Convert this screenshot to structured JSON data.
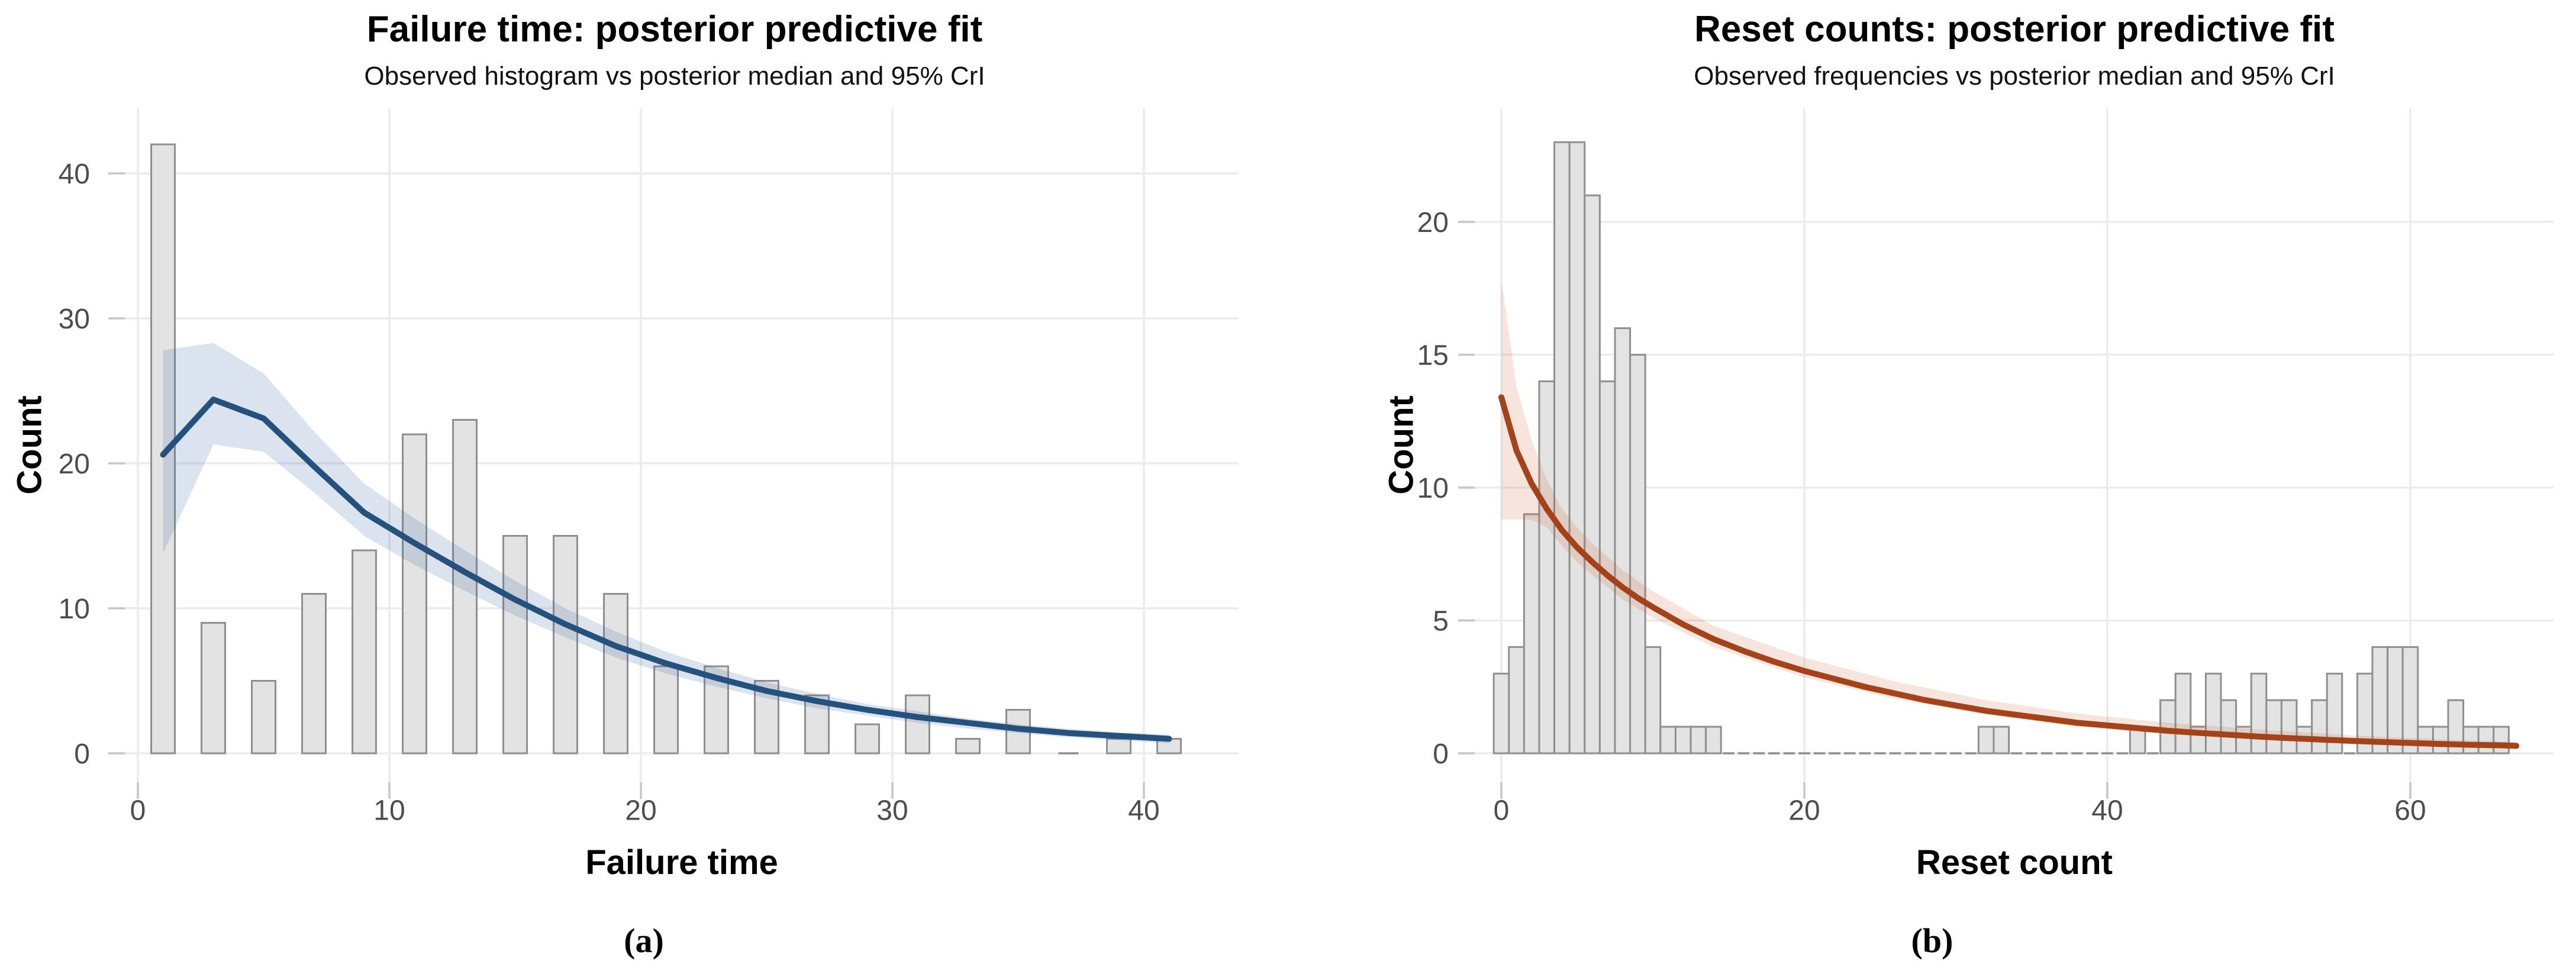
{
  "chart_data": [
    {
      "type": "bar",
      "subtype": "histogram-with-posterior-line-and-band",
      "title": "Failure time: posterior predictive fit",
      "subtitle": "Observed histogram vs posterior median and 95% CrI",
      "xlabel": "Failure time",
      "ylabel": "Count",
      "caption": "(a)",
      "x_ticks": [
        0,
        10,
        20,
        30,
        40
      ],
      "y_ticks": [
        0,
        10,
        20,
        30,
        40
      ],
      "xlim": [
        -1,
        43.6
      ],
      "ylim": [
        0,
        44
      ],
      "grid": true,
      "legend_position": "none",
      "bars": {
        "barwidth": 0.94,
        "x": [
          1,
          3,
          5,
          7,
          9,
          11,
          13,
          15,
          17,
          19,
          21,
          23,
          25,
          27,
          29,
          31,
          33,
          35,
          37,
          39,
          41
        ],
        "counts": [
          42,
          9,
          5,
          11,
          14,
          22,
          23,
          15,
          15,
          11,
          6,
          6,
          5,
          4,
          2,
          4,
          1,
          3,
          0,
          1,
          1
        ]
      },
      "median": {
        "x": [
          1,
          3,
          5,
          7,
          9,
          11,
          13,
          15,
          17,
          19,
          21,
          23,
          25,
          27,
          29,
          31,
          33,
          35,
          37,
          39,
          41
        ],
        "y": [
          20.6,
          24.4,
          23.1,
          19.8,
          16.6,
          14.5,
          12.5,
          10.6,
          8.9,
          7.4,
          6.2,
          5.2,
          4.3,
          3.6,
          3.0,
          2.5,
          2.1,
          1.7,
          1.4,
          1.2,
          1.0
        ]
      },
      "band": {
        "x": [
          1,
          3,
          5,
          7,
          9,
          11,
          13,
          15,
          17,
          19,
          21,
          23,
          25,
          27,
          29,
          31,
          33,
          35,
          37,
          39,
          41
        ],
        "lower": [
          13.8,
          21.3,
          20.8,
          18.0,
          15.0,
          13.0,
          11.2,
          9.5,
          8.0,
          6.6,
          5.5,
          4.6,
          3.8,
          3.1,
          2.6,
          2.1,
          1.7,
          1.4,
          1.1,
          0.9,
          0.7
        ],
        "upper": [
          27.8,
          28.3,
          26.2,
          22.2,
          18.6,
          16.2,
          14.0,
          11.9,
          10.0,
          8.4,
          7.0,
          5.9,
          4.9,
          4.1,
          3.4,
          2.9,
          2.4,
          2.0,
          1.7,
          1.45,
          1.3
        ]
      },
      "colors": {
        "line": "#25517d",
        "band": "rgba(58,98,160,0.18)",
        "bar_fill": "#e3e3e3",
        "bar_stroke": "#8f8f8f",
        "grid": "#ebebeb",
        "tick": "#c6c6c6",
        "tick_label": "#4d4d4d",
        "title": "#000000"
      }
    },
    {
      "type": "bar",
      "subtype": "histogram-with-posterior-line-and-band",
      "title": "Reset counts: posterior predictive fit",
      "subtitle": "Observed frequencies vs posterior median and 95% CrI",
      "xlabel": "Reset count",
      "ylabel": "Count",
      "caption": "(b)",
      "x_ticks": [
        0,
        20,
        40,
        60
      ],
      "y_ticks": [
        0,
        5,
        10,
        15,
        20
      ],
      "xlim": [
        -1.8,
        69.5
      ],
      "ylim": [
        0,
        24
      ],
      "grid": true,
      "legend_position": "none",
      "bars": {
        "barwidth": 1.0,
        "x": [
          0,
          1,
          2,
          3,
          4,
          5,
          6,
          7,
          8,
          9,
          10,
          11,
          12,
          13,
          14,
          15,
          16,
          17,
          18,
          19,
          20,
          21,
          22,
          23,
          24,
          25,
          26,
          27,
          28,
          29,
          30,
          31,
          32,
          33,
          34,
          35,
          36,
          37,
          38,
          39,
          40,
          41,
          42,
          43,
          44,
          45,
          46,
          47,
          48,
          49,
          50,
          51,
          52,
          53,
          54,
          55,
          56,
          57,
          58,
          59,
          60,
          61,
          62,
          63,
          64,
          65,
          66
        ],
        "counts": [
          3,
          4,
          9,
          14,
          23,
          23,
          21,
          14,
          16,
          15,
          4,
          1,
          1,
          1,
          1,
          0,
          0,
          0,
          0,
          0,
          0,
          0,
          0,
          0,
          0,
          0,
          0,
          0,
          0,
          0,
          0,
          0,
          1,
          1,
          0,
          0,
          0,
          0,
          0,
          0,
          0,
          0,
          1,
          0,
          2,
          3,
          1,
          3,
          2,
          1,
          3,
          2,
          2,
          1,
          2,
          3,
          0,
          3,
          4,
          4,
          4,
          1,
          1,
          2,
          1,
          1,
          1
        ]
      },
      "median": {
        "x": [
          0,
          1,
          2,
          3,
          4,
          5,
          6,
          7,
          8,
          9,
          10,
          12,
          14,
          16,
          18,
          20,
          22,
          24,
          26,
          28,
          30,
          32,
          34,
          36,
          38,
          40,
          42,
          44,
          46,
          48,
          50,
          52,
          54,
          56,
          58,
          60,
          62,
          64,
          66,
          67
        ],
        "y": [
          13.4,
          11.4,
          10.15,
          9.2,
          8.4,
          7.75,
          7.2,
          6.7,
          6.25,
          5.85,
          5.5,
          4.85,
          4.3,
          3.85,
          3.45,
          3.1,
          2.8,
          2.5,
          2.25,
          2.0,
          1.8,
          1.6,
          1.45,
          1.3,
          1.15,
          1.05,
          0.95,
          0.85,
          0.77,
          0.7,
          0.63,
          0.57,
          0.52,
          0.47,
          0.43,
          0.39,
          0.35,
          0.32,
          0.3,
          0.28
        ]
      },
      "band": {
        "x": [
          0,
          1,
          2,
          3,
          4,
          5,
          6,
          8,
          10,
          14,
          20,
          26,
          32,
          38,
          44,
          50,
          56,
          60,
          64,
          67
        ],
        "lower": [
          8.8,
          8.8,
          8.8,
          8.5,
          7.8,
          7.2,
          6.7,
          5.8,
          5.1,
          4.0,
          2.85,
          2.05,
          1.45,
          1.0,
          0.72,
          0.52,
          0.38,
          0.31,
          0.25,
          0.22
        ],
        "upper": [
          17.8,
          13.8,
          11.8,
          10.3,
          9.2,
          8.5,
          7.9,
          6.9,
          6.1,
          4.8,
          3.6,
          2.7,
          2.0,
          1.5,
          1.15,
          0.9,
          0.68,
          0.58,
          0.48,
          0.44
        ]
      },
      "colors": {
        "line": "#a4431a",
        "band": "rgba(205,95,45,0.17)",
        "bar_fill": "#e3e3e3",
        "bar_stroke": "#8f8f8f",
        "grid": "#ebebeb",
        "tick": "#c6c6c6",
        "tick_label": "#4d4d4d",
        "title": "#000000"
      }
    }
  ]
}
